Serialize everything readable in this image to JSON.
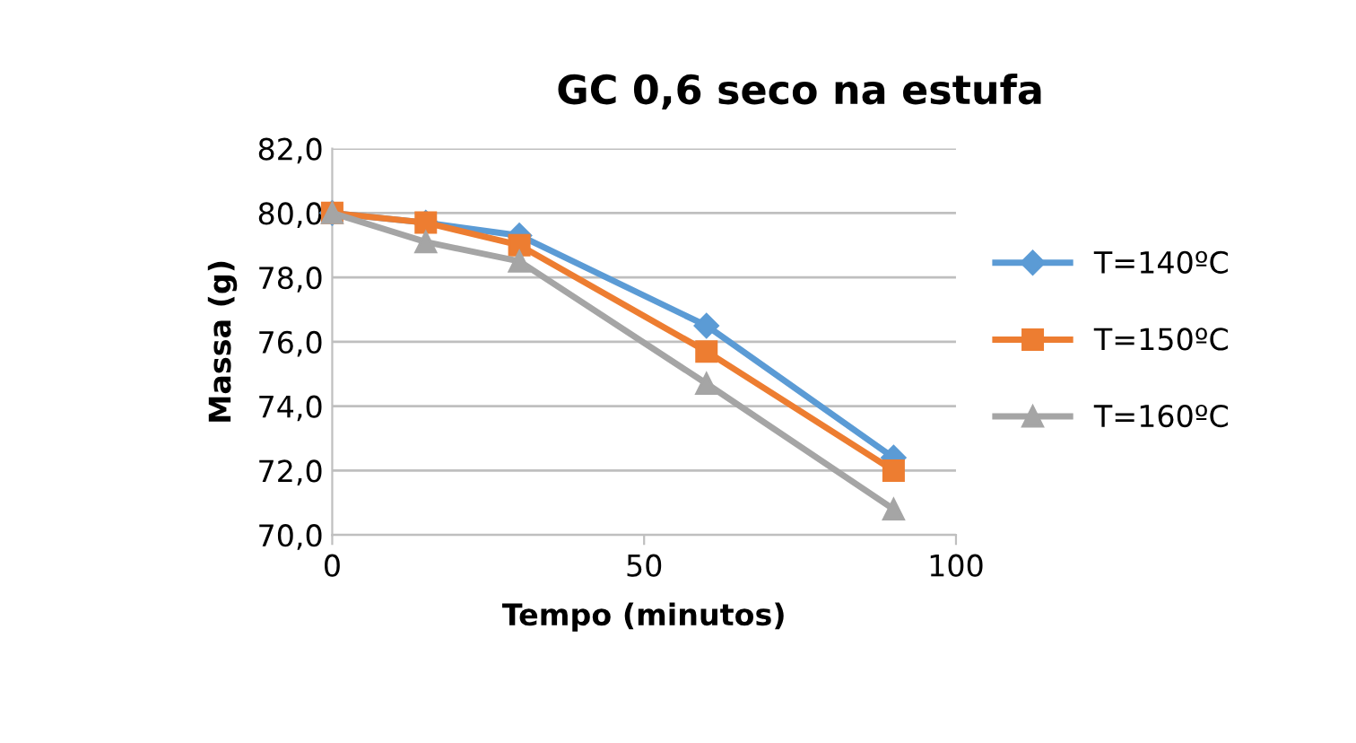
{
  "chart_data": {
    "type": "line",
    "title": "GC 0,6 seco na estufa",
    "xlabel": "Tempo (minutos)",
    "ylabel": "Massa (g)",
    "x": [
      0,
      15,
      30,
      60,
      90
    ],
    "series": [
      {
        "name": "T=140ºC",
        "color": "#5b9bd5",
        "marker": "diamond",
        "values": [
          80.0,
          79.7,
          79.3,
          76.5,
          72.4
        ]
      },
      {
        "name": "T=150ºC",
        "color": "#ed7d31",
        "marker": "square",
        "values": [
          80.0,
          79.7,
          79.0,
          75.7,
          72.0
        ]
      },
      {
        "name": "T=160ºC",
        "color": "#a5a5a5",
        "marker": "triangle",
        "values": [
          80.0,
          79.1,
          78.5,
          74.7,
          70.8
        ]
      }
    ],
    "xlim": [
      0,
      100
    ],
    "xticks": [
      0,
      50,
      100
    ],
    "ylim": [
      70,
      82
    ],
    "yticks": [
      {
        "value": 70,
        "label": "70,0"
      },
      {
        "value": 72,
        "label": "72,0"
      },
      {
        "value": 74,
        "label": "74,0"
      },
      {
        "value": 76,
        "label": "76,0"
      },
      {
        "value": 78,
        "label": "78,0"
      },
      {
        "value": 80,
        "label": "80,0"
      },
      {
        "value": 82,
        "label": "82,0"
      }
    ],
    "grid": "y",
    "legend": "right",
    "line_style": "solid"
  }
}
